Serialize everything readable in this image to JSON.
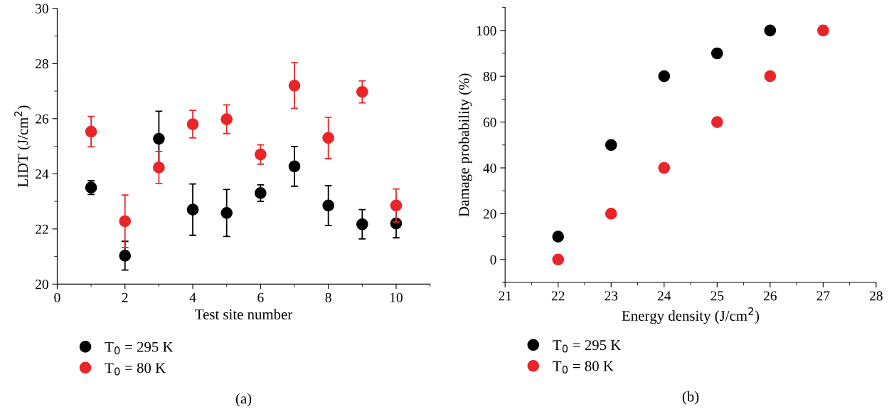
{
  "chart_data": [
    {
      "type": "scatter",
      "xlabel": "Test site number",
      "ylabel": "LIDT (J/cm$^{2}$)",
      "xlim": [
        0,
        11
      ],
      "xticks": [
        0,
        2,
        4,
        6,
        8,
        10
      ],
      "ylim": [
        20,
        30
      ],
      "yticks": [
        20,
        22,
        24,
        26,
        28,
        30
      ],
      "x": [
        1,
        2,
        3,
        4,
        5,
        6,
        7,
        8,
        9,
        10
      ],
      "marker": "circle",
      "legend": "bottom left",
      "grid": false,
      "annotations": [
        "(a)"
      ],
      "series": [
        {
          "name": "T$_{0}$ = 295 K",
          "color": "#000000",
          "values": [
            23.5,
            21.03,
            25.27,
            22.7,
            22.58,
            23.3,
            24.27,
            22.85,
            22.17,
            22.2
          ],
          "errors": [
            0.25,
            0.52,
            1.0,
            0.93,
            0.85,
            0.3,
            0.72,
            0.72,
            0.53,
            0.52
          ]
        },
        {
          "name": "T$_{0}$ = 80 K",
          "color": "#e8262a",
          "values": [
            25.53,
            22.28,
            24.23,
            25.8,
            25.98,
            24.7,
            27.2,
            25.3,
            26.97,
            22.85
          ],
          "errors": [
            0.55,
            0.95,
            0.58,
            0.5,
            0.52,
            0.35,
            0.83,
            0.75,
            0.4,
            0.6
          ]
        }
      ]
    },
    {
      "type": "scatter",
      "xlabel": "Energy density (J/cm$^{2}$)",
      "ylabel": "Damage probability (%)",
      "xlim": [
        21,
        28
      ],
      "xticks": [
        21,
        22,
        23,
        24,
        25,
        26,
        27,
        28
      ],
      "ylim": [
        -10,
        110
      ],
      "yticks": [
        0,
        20,
        40,
        60,
        80,
        100
      ],
      "marker": "circle",
      "legend": "bottom left",
      "grid": false,
      "annotations": [
        "(b)"
      ],
      "series": [
        {
          "name": "T$_{0}$ = 295 K",
          "color": "#000000",
          "x": [
            22,
            23,
            24,
            25,
            26
          ],
          "values": [
            10,
            50,
            80,
            90,
            100
          ]
        },
        {
          "name": "T$_{0}$ = 80 K",
          "color": "#e8262a",
          "x": [
            22,
            23,
            24,
            25,
            26,
            27
          ],
          "values": [
            0,
            20,
            40,
            60,
            80,
            100
          ]
        }
      ]
    }
  ]
}
